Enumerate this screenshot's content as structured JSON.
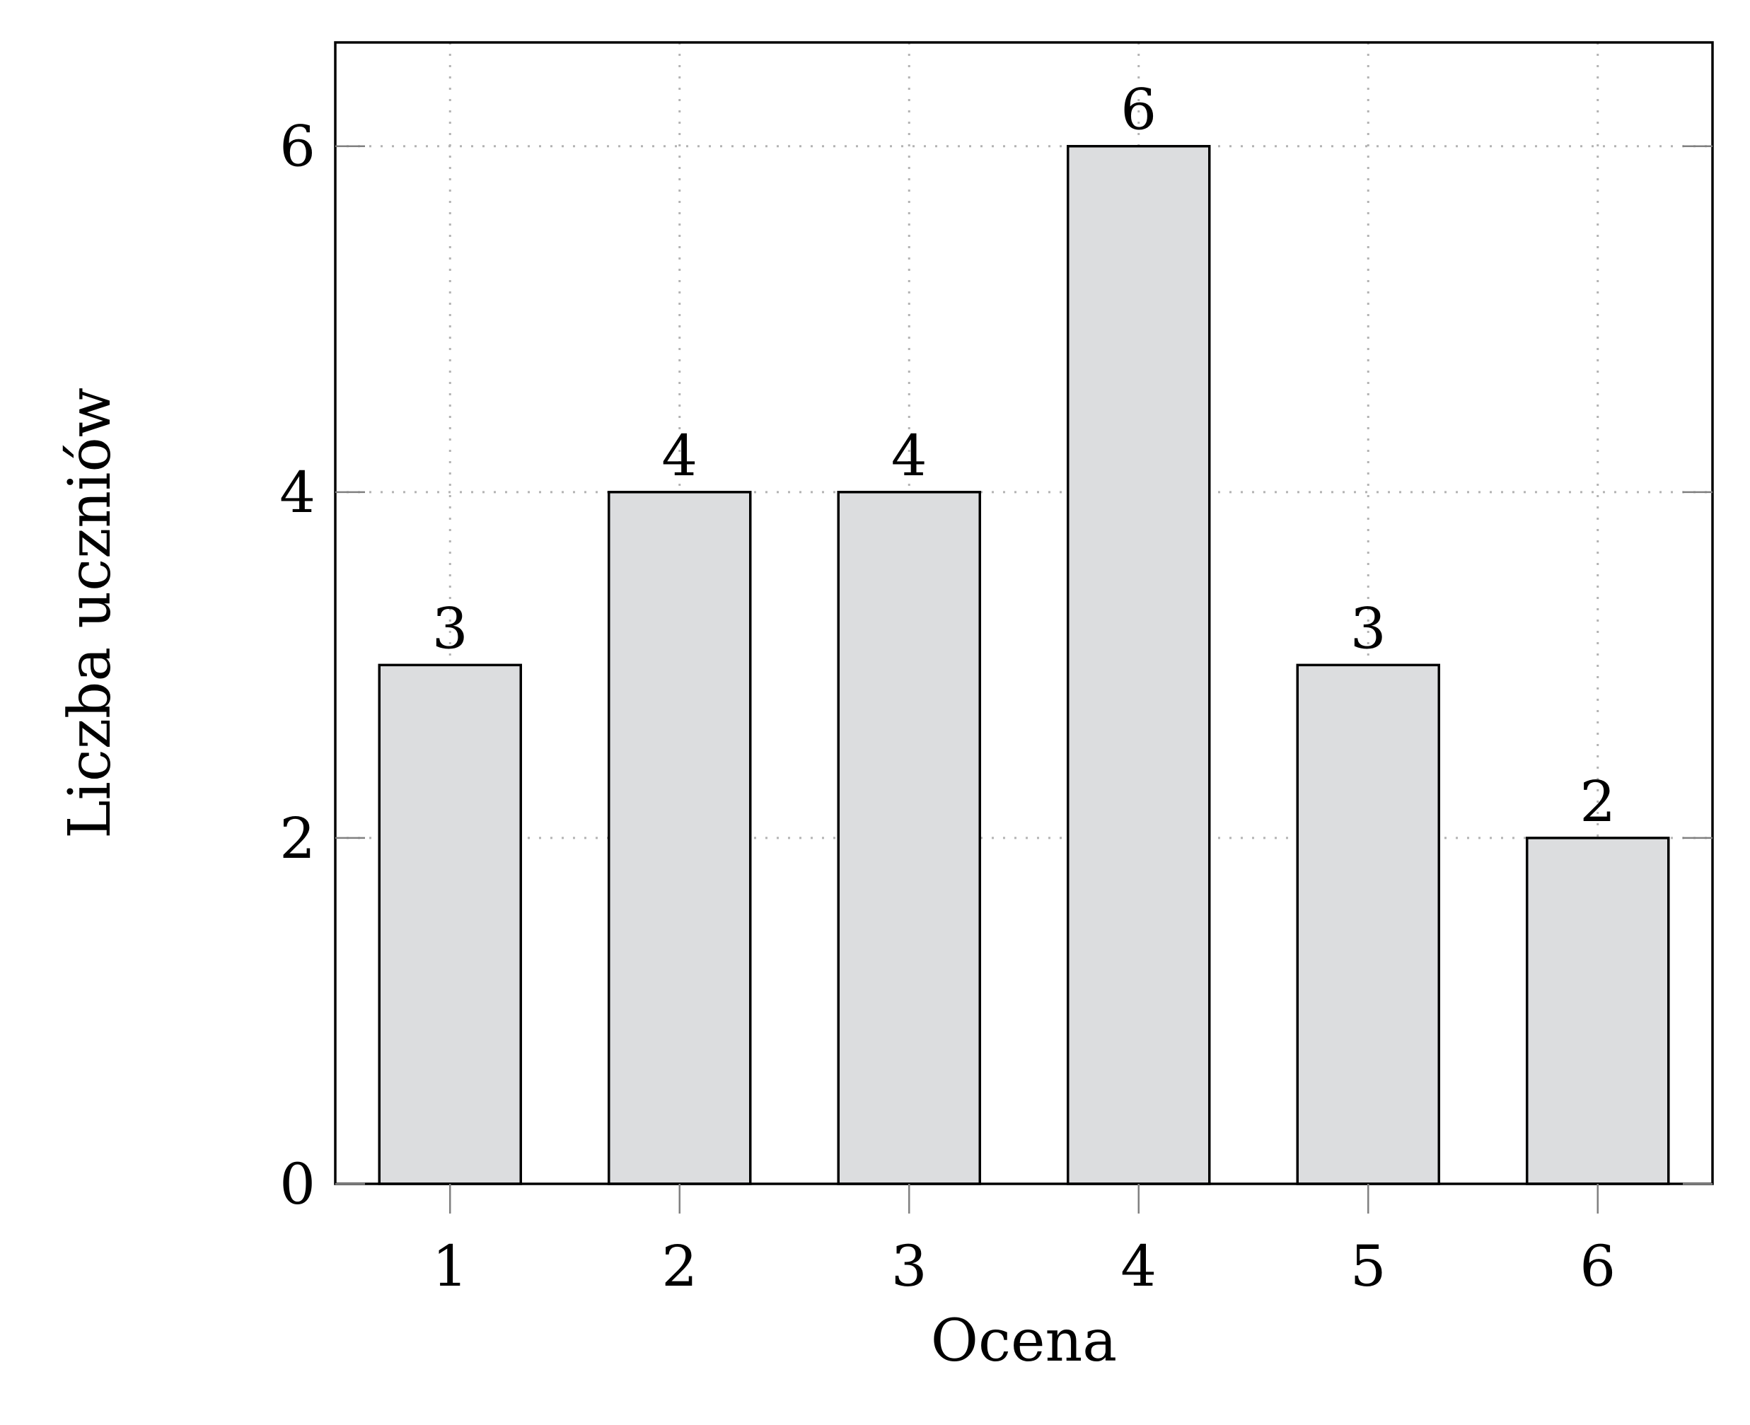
{
  "chart_data": {
    "type": "bar",
    "categories": [
      "1",
      "2",
      "3",
      "4",
      "5",
      "6"
    ],
    "values": [
      3,
      4,
      4,
      6,
      3,
      2
    ],
    "data_labels": [
      "3",
      "4",
      "4",
      "6",
      "3",
      "2"
    ],
    "xlabel": "Ocena",
    "ylabel": "Liczba uczniów",
    "ylim": [
      0,
      6.6
    ],
    "yticks": [
      0,
      2,
      4,
      6
    ],
    "ytick_labels": [
      "0",
      "2",
      "4",
      "6"
    ],
    "grid": true,
    "bar_color": "#dcdddf",
    "bar_edge_color": "#000000"
  }
}
